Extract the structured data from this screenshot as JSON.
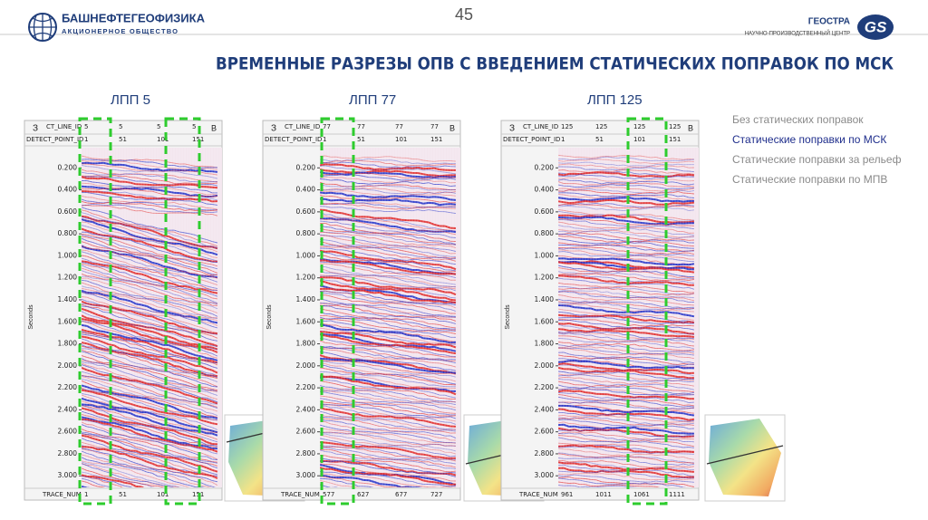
{
  "header": {
    "page_number": "45",
    "left_logo": {
      "name": "БАШНЕФТЕГЕОФИЗИКА",
      "subtitle": "АКЦИОНЕРНОЕ ОБЩЕСТВО"
    },
    "right_logo": {
      "name": "ГЕОСТРА",
      "subtitle": "НАУЧНО-ПРОИЗВОДСТВЕННЫЙ ЦЕНТР",
      "badge": "GS"
    }
  },
  "title": "ВРЕМЕННЫЕ РАЗРЕЗЫ ОПВ С ВВЕДЕНИЕМ СТАТИЧЕСКИХ ПОПРАВОК ПО МСК",
  "panels": [
    {
      "label": "ЛПП 5",
      "left_marker": "З",
      "right_marker": "В",
      "header_rows": [
        {
          "label": "CT_LINE_ID",
          "values": [
            "5",
            "5",
            "5",
            "5"
          ]
        },
        {
          "label": "DETECT_POINT_ID",
          "values": [
            "1",
            "51",
            "101",
            "151"
          ]
        }
      ],
      "axis_label": "Seconds",
      "time_ticks": [
        "0.200",
        "0.400",
        "0.600",
        "0.800",
        "1.000",
        "1.200",
        "1.400",
        "1.600",
        "1.800",
        "2.000",
        "2.200",
        "2.400",
        "2.600",
        "2.800",
        "3.000"
      ],
      "footer": {
        "label": "TRACE_NUM",
        "values": [
          "1",
          "51",
          "101",
          "151"
        ]
      }
    },
    {
      "label": "ЛПП 77",
      "left_marker": "З",
      "right_marker": "В",
      "header_rows": [
        {
          "label": "CT_LINE_ID",
          "values": [
            "77",
            "77",
            "77",
            "77"
          ]
        },
        {
          "label": "DETECT_POINT_ID",
          "values": [
            "1",
            "51",
            "101",
            "151"
          ]
        }
      ],
      "axis_label": "Seconds",
      "time_ticks": [
        "0.200",
        "0.400",
        "0.600",
        "0.800",
        "1.000",
        "1.200",
        "1.400",
        "1.600",
        "1.800",
        "2.000",
        "2.200",
        "2.400",
        "2.600",
        "2.800",
        "3.000"
      ],
      "footer": {
        "label": "TRACE_NUM",
        "values": [
          "577",
          "627",
          "677",
          "727"
        ]
      }
    },
    {
      "label": "ЛПП 125",
      "left_marker": "З",
      "right_marker": "В",
      "header_rows": [
        {
          "label": "CT_LINE_ID",
          "values": [
            "125",
            "125",
            "125",
            "125"
          ]
        },
        {
          "label": "DETECT_POINT_ID",
          "values": [
            "1",
            "51",
            "101",
            "151"
          ]
        }
      ],
      "axis_label": "Seconds",
      "time_ticks": [
        "0.200",
        "0.400",
        "0.600",
        "0.800",
        "1.000",
        "1.200",
        "1.400",
        "1.600",
        "1.800",
        "2.000",
        "2.200",
        "2.400",
        "2.600",
        "2.800",
        "3.000"
      ],
      "footer": {
        "label": "TRACE_NUM",
        "values": [
          "961",
          "1011",
          "1061",
          "1111"
        ]
      }
    }
  ],
  "legend": {
    "items": [
      {
        "text": "Без статических поправок",
        "color": "#8a8a8a"
      },
      {
        "text": "Статические поправки по МСК",
        "color": "#1f2e8c"
      },
      {
        "text": "Статические поправки за рельеф",
        "color": "#8a8a8a"
      },
      {
        "text": "Статические поправки по МПВ",
        "color": "#8a8a8a"
      }
    ]
  }
}
